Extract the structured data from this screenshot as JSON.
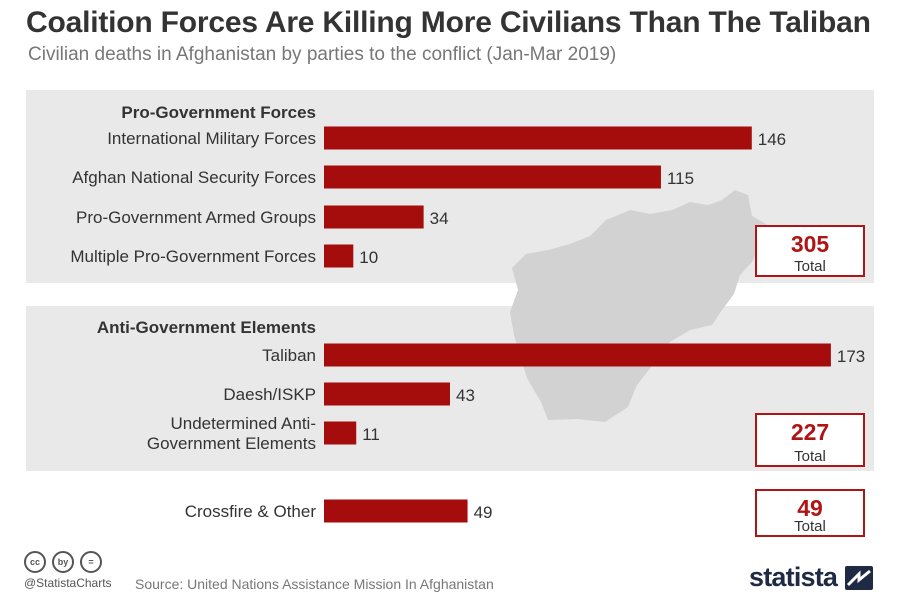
{
  "header": {
    "title": "Coalition Forces Are Killing More Civilians Than The Taliban",
    "subtitle": "Civilian deaths in Afghanistan by parties to the conflict (Jan-Mar 2019)"
  },
  "chart_data": {
    "type": "bar",
    "orientation": "horizontal",
    "bar_color": "#a50c0c",
    "total_color": "#b01515",
    "groups": [
      {
        "label": "Pro-Government Forces",
        "categories": [
          "International Military Forces",
          "Afghan National Security Forces",
          "Pro-Government Armed Groups",
          "Multiple Pro-Government Forces"
        ],
        "values": [
          146,
          115,
          34,
          10
        ],
        "total": 305,
        "total_label": "Total"
      },
      {
        "label": "Anti-Government Elements",
        "categories": [
          "Taliban",
          "Daesh/ISKP",
          "Undetermined Anti-Government Elements"
        ],
        "category_lines": [
          [
            "Taliban"
          ],
          [
            "Daesh/ISKP"
          ],
          [
            "Undetermined Anti-",
            "Government Elements"
          ]
        ],
        "values": [
          173,
          43,
          11
        ],
        "total": 227,
        "total_label": "Total"
      },
      {
        "label": "",
        "categories": [
          "Crossfire & Other"
        ],
        "values": [
          49
        ],
        "total": 49,
        "total_label": "Total"
      }
    ]
  },
  "footer": {
    "cc_icons": [
      "cc",
      "by",
      "="
    ],
    "handle": "@StatistaCharts",
    "source": "Source: United Nations Assistance Mission In Afghanistan",
    "brand": "statista"
  }
}
